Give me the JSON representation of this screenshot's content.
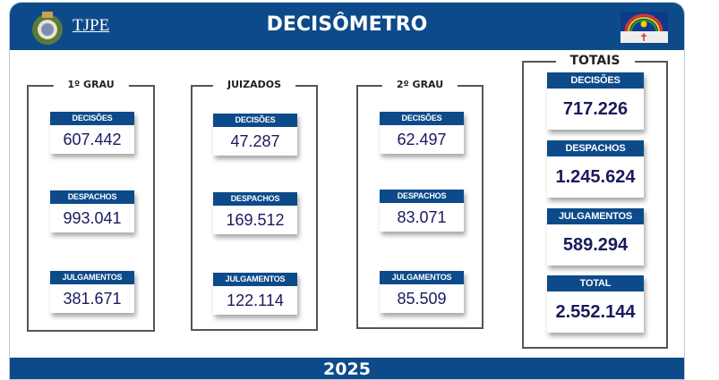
{
  "header": {
    "logo_text": "TJPE",
    "title": "DECISÔMETRO"
  },
  "groups": [
    {
      "title": "1º GRAU",
      "metrics": [
        {
          "label": "DECISÕES",
          "value": "607.442"
        },
        {
          "label": "DESPACHOS",
          "value": "993.041"
        },
        {
          "label": "JULGAMENTOS",
          "value": "381.671"
        }
      ]
    },
    {
      "title": "JUIZADOS",
      "metrics": [
        {
          "label": "DECISÕES",
          "value": "47.287"
        },
        {
          "label": "DESPACHOS",
          "value": "169.512"
        },
        {
          "label": "JULGAMENTOS",
          "value": "122.114"
        }
      ]
    },
    {
      "title": "2º GRAU",
      "metrics": [
        {
          "label": "DECISÕES",
          "value": "62.497"
        },
        {
          "label": "DESPACHOS",
          "value": "83.071"
        },
        {
          "label": "JULGAMENTOS",
          "value": "85.509"
        }
      ]
    }
  ],
  "totals": {
    "title": "TOTAIS",
    "metrics": [
      {
        "label": "DECISÕES",
        "value": "717.226"
      },
      {
        "label": "DESPACHOS",
        "value": "1.245.624"
      },
      {
        "label": "JULGAMENTOS",
        "value": "589.294"
      },
      {
        "label": "TOTAL",
        "value": "2.552.144"
      }
    ]
  },
  "footer": {
    "year": "2025"
  },
  "colors": {
    "brand_blue": "#0d4a8a",
    "value_text": "#1a1a5e"
  }
}
